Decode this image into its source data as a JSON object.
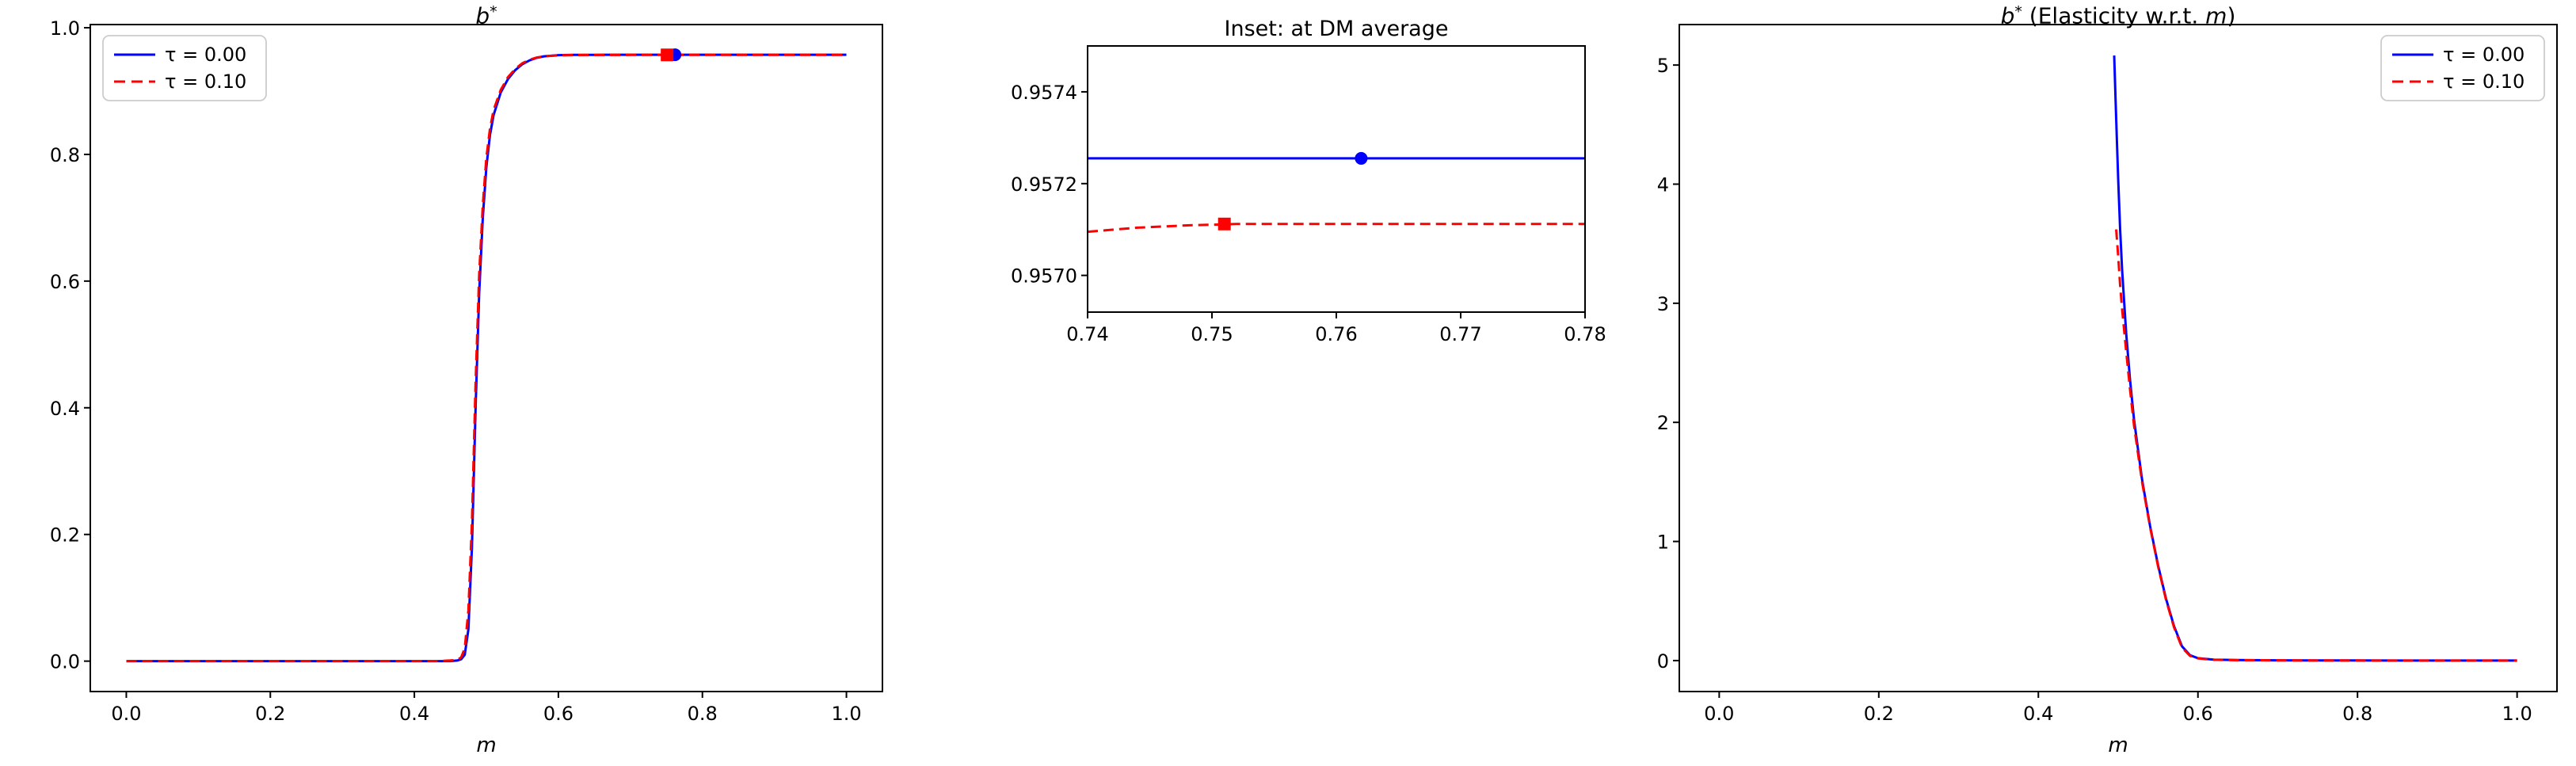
{
  "figure": {
    "background": "#ffffff"
  },
  "colors": {
    "series_blue": "#0000ff",
    "series_red": "#ff0000",
    "axis": "#000000",
    "legend_border": "#cccccc"
  },
  "chart_data": [
    {
      "type": "line",
      "title": {
        "base": "b",
        "sup": "*"
      },
      "xlabel": "m",
      "ylabel": "",
      "xlim": [
        -0.05,
        1.05
      ],
      "ylim": [
        -0.048,
        1.005
      ],
      "grid": false,
      "xticks": {
        "values": [
          0.0,
          0.2,
          0.4,
          0.6,
          0.8,
          1.0
        ],
        "labels": [
          "0.0",
          "0.2",
          "0.4",
          "0.6",
          "0.8",
          "1.0"
        ]
      },
      "yticks": {
        "values": [
          0.0,
          0.2,
          0.4,
          0.6,
          0.8,
          1.0
        ],
        "labels": [
          "0.0",
          "0.2",
          "0.4",
          "0.6",
          "0.8",
          "1.0"
        ]
      },
      "legend": {
        "location": "upper-left"
      },
      "series": [
        {
          "name": "τ = 0.00",
          "color": "#0000ff",
          "style": "solid",
          "x": [
            0.0,
            0.04,
            0.08,
            0.12,
            0.16,
            0.2,
            0.24,
            0.28,
            0.32,
            0.36,
            0.4,
            0.43,
            0.45,
            0.46,
            0.465,
            0.47,
            0.475,
            0.48,
            0.485,
            0.49,
            0.495,
            0.5,
            0.505,
            0.51,
            0.52,
            0.53,
            0.54,
            0.55,
            0.56,
            0.57,
            0.58,
            0.6,
            0.62,
            0.65,
            0.7,
            0.75,
            0.8,
            0.85,
            0.9,
            0.95,
            1.0
          ],
          "y": [
            0,
            0,
            0,
            0,
            0,
            0,
            0,
            0,
            0,
            0,
            0,
            0,
            0,
            0.001,
            0.003,
            0.01,
            0.05,
            0.18,
            0.4,
            0.58,
            0.7,
            0.78,
            0.83,
            0.862,
            0.898,
            0.919,
            0.933,
            0.9425,
            0.9485,
            0.9525,
            0.9548,
            0.9567,
            0.9571,
            0.9572,
            0.9573,
            0.9573,
            0.9573,
            0.9573,
            0.9573,
            0.9573,
            0.9573
          ]
        },
        {
          "name": "τ = 0.10",
          "color": "#ff0000",
          "style": "dashed",
          "x": [
            0.0,
            0.04,
            0.08,
            0.12,
            0.16,
            0.2,
            0.24,
            0.28,
            0.32,
            0.36,
            0.4,
            0.43,
            0.45,
            0.46,
            0.465,
            0.47,
            0.475,
            0.48,
            0.485,
            0.49,
            0.495,
            0.5,
            0.505,
            0.51,
            0.52,
            0.53,
            0.54,
            0.55,
            0.56,
            0.57,
            0.58,
            0.6,
            0.62,
            0.65,
            0.7,
            0.75,
            0.8,
            0.85,
            0.9,
            0.95,
            1.0
          ],
          "y": [
            0,
            0,
            0,
            0,
            0,
            0,
            0,
            0,
            0,
            0,
            0,
            0,
            0.001,
            0.002,
            0.006,
            0.02,
            0.08,
            0.22,
            0.44,
            0.61,
            0.72,
            0.795,
            0.84,
            0.87,
            0.902,
            0.922,
            0.935,
            0.944,
            0.9495,
            0.953,
            0.9549,
            0.9564,
            0.9568,
            0.957,
            0.9571,
            0.9571,
            0.9571,
            0.9571,
            0.9571,
            0.9571,
            0.9571
          ]
        }
      ],
      "markers": [
        {
          "shape": "circle",
          "color": "#0000ff",
          "x": 0.762,
          "y": 0.9573
        },
        {
          "shape": "square",
          "color": "#ff0000",
          "x": 0.751,
          "y": 0.9571
        }
      ]
    },
    {
      "type": "line",
      "title": {
        "text": "Inset: at DM average"
      },
      "xlabel": "",
      "ylabel": "",
      "xlim": [
        0.74,
        0.78
      ],
      "ylim": [
        0.95692,
        0.9575
      ],
      "grid": false,
      "xticks": {
        "values": [
          0.74,
          0.75,
          0.76,
          0.77,
          0.78
        ],
        "labels": [
          "0.74",
          "0.75",
          "0.76",
          "0.77",
          "0.78"
        ]
      },
      "yticks": {
        "values": [
          0.957,
          0.9572,
          0.9574
        ],
        "labels": [
          "0.9570",
          "0.9572",
          "0.9574"
        ]
      },
      "legend": null,
      "series": [
        {
          "name": "τ = 0.00",
          "color": "#0000ff",
          "style": "solid",
          "x": [
            0.74,
            0.78
          ],
          "y": [
            0.957255,
            0.957255
          ]
        },
        {
          "name": "τ = 0.10",
          "color": "#ff0000",
          "style": "dashed",
          "x": [
            0.74,
            0.744,
            0.748,
            0.752,
            0.756,
            0.76,
            0.765,
            0.77,
            0.775,
            0.78
          ],
          "y": [
            0.957095,
            0.957104,
            0.957109,
            0.957112,
            0.957112,
            0.957112,
            0.957112,
            0.957112,
            0.957112,
            0.957112
          ]
        }
      ],
      "markers": [
        {
          "shape": "circle",
          "color": "#0000ff",
          "x": 0.762,
          "y": 0.957255
        },
        {
          "shape": "square",
          "color": "#ff0000",
          "x": 0.751,
          "y": 0.957112
        }
      ]
    },
    {
      "type": "line",
      "title": {
        "base": "b",
        "sup": "*",
        "rest_pre": " (Elasticity w.r.t. ",
        "rest_var": "m",
        "rest_post": ")"
      },
      "xlabel": "m",
      "ylabel": "",
      "xlim": [
        -0.05,
        1.05
      ],
      "ylim": [
        -0.26,
        5.34
      ],
      "grid": false,
      "xticks": {
        "values": [
          0.0,
          0.2,
          0.4,
          0.6,
          0.8,
          1.0
        ],
        "labels": [
          "0.0",
          "0.2",
          "0.4",
          "0.6",
          "0.8",
          "1.0"
        ]
      },
      "yticks": {
        "values": [
          0,
          1,
          2,
          3,
          4,
          5
        ],
        "labels": [
          "0",
          "1",
          "2",
          "3",
          "4",
          "5"
        ]
      },
      "legend": {
        "location": "upper-right"
      },
      "series": [
        {
          "name": "τ = 0.00",
          "color": "#0000ff",
          "style": "solid",
          "x": [
            0.495,
            0.4975,
            0.5,
            0.5025,
            0.505,
            0.51,
            0.515,
            0.52,
            0.53,
            0.54,
            0.55,
            0.56,
            0.57,
            0.58,
            0.59,
            0.6,
            0.62,
            0.65,
            0.7,
            0.75,
            0.8,
            0.85,
            0.9,
            0.95,
            1.0
          ],
          "y": [
            5.08,
            4.55,
            4.05,
            3.62,
            3.28,
            2.75,
            2.35,
            2.02,
            1.52,
            1.13,
            0.8,
            0.52,
            0.29,
            0.12,
            0.045,
            0.02,
            0.008,
            0.004,
            0.002,
            0.001,
            0.001,
            0.0,
            0.0,
            0.0,
            0.0
          ]
        },
        {
          "name": "τ = 0.10",
          "color": "#ff0000",
          "style": "dashed",
          "x": [
            0.4975,
            0.5,
            0.5025,
            0.505,
            0.51,
            0.515,
            0.52,
            0.53,
            0.54,
            0.55,
            0.56,
            0.57,
            0.58,
            0.59,
            0.6,
            0.62,
            0.65,
            0.7,
            0.75,
            0.8,
            0.85,
            0.9,
            0.95,
            1.0
          ],
          "y": [
            3.62,
            3.4,
            3.15,
            2.95,
            2.6,
            2.27,
            1.97,
            1.5,
            1.12,
            0.79,
            0.51,
            0.28,
            0.11,
            0.04,
            0.018,
            0.007,
            0.003,
            0.002,
            0.001,
            0.001,
            0.0,
            0.0,
            0.0,
            0.0
          ]
        }
      ],
      "markers": []
    }
  ]
}
